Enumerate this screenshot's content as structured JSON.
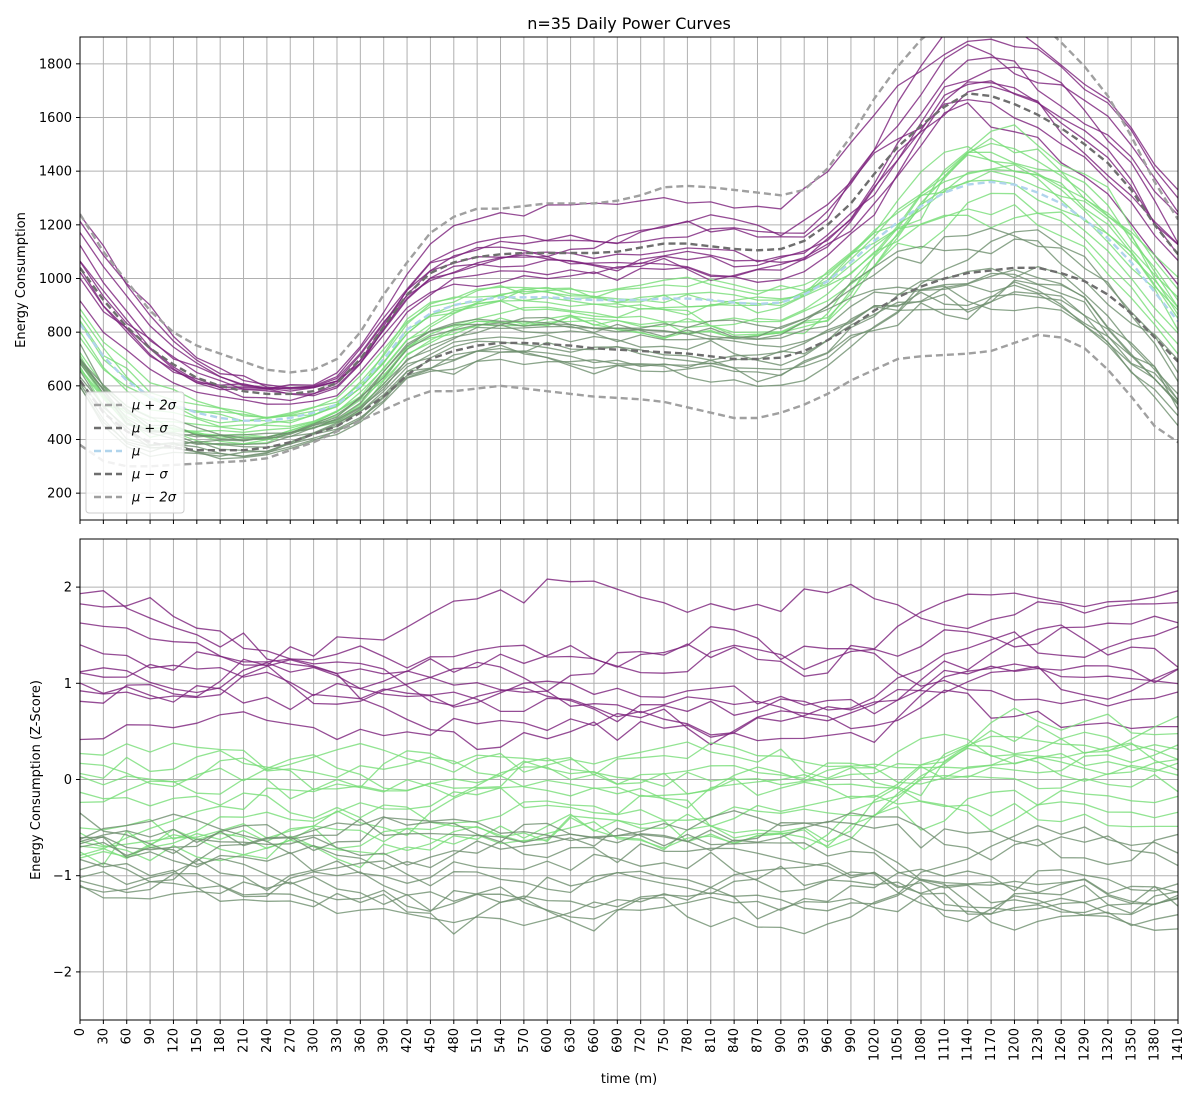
{
  "chart_data": [
    {
      "type": "line",
      "title": "n=35 Daily Power Curves",
      "xlabel": "",
      "ylabel": "Energy Consumption",
      "xlim": [
        0,
        1410
      ],
      "ylim": [
        100,
        1900
      ],
      "xticks": [
        0,
        30,
        60,
        90,
        120,
        150,
        180,
        210,
        240,
        270,
        300,
        330,
        360,
        390,
        420,
        450,
        480,
        510,
        540,
        570,
        600,
        630,
        660,
        690,
        720,
        750,
        780,
        810,
        840,
        870,
        900,
        930,
        960,
        990,
        1020,
        1050,
        1080,
        1110,
        1140,
        1170,
        1200,
        1230,
        1260,
        1290,
        1320,
        1350,
        1380,
        1410
      ],
      "yticks": [
        200,
        400,
        600,
        800,
        1000,
        1200,
        1400,
        1600,
        1800
      ],
      "grid": true,
      "legend_position": "lower-left",
      "legend_labels": [
        "μ + 2σ",
        "μ + σ",
        "μ",
        "μ − σ",
        "μ − 2σ"
      ],
      "colors": {
        "purple": "#7b1f7b",
        "green": "#77dd77",
        "gray_green": "#6e8f6e",
        "mean": "#b0d4ec",
        "band1": "#6e6e6e",
        "band2": "#a0a0a0"
      },
      "x_step_min": 30,
      "stats": {
        "mu_plus_2sigma": [
          1240,
          1100,
          990,
          880,
          800,
          750,
          720,
          690,
          660,
          650,
          660,
          700,
          800,
          940,
          1060,
          1170,
          1230,
          1260,
          1260,
          1270,
          1280,
          1280,
          1280,
          1290,
          1310,
          1340,
          1345,
          1340,
          1330,
          1320,
          1310,
          1330,
          1410,
          1530,
          1670,
          1790,
          1890,
          1960,
          2010,
          2030,
          2010,
          1960,
          1880,
          1790,
          1680,
          1530,
          1360,
          1220
        ],
        "mu_plus_sigma": [
          1040,
          920,
          820,
          740,
          680,
          630,
          600,
          580,
          570,
          570,
          580,
          610,
          700,
          820,
          940,
          1020,
          1060,
          1080,
          1090,
          1095,
          1095,
          1095,
          1095,
          1100,
          1115,
          1130,
          1130,
          1120,
          1110,
          1105,
          1110,
          1140,
          1200,
          1280,
          1390,
          1490,
          1570,
          1640,
          1690,
          1680,
          1650,
          1610,
          1560,
          1500,
          1430,
          1330,
          1200,
          1090
        ],
        "mu": [
          830,
          710,
          620,
          560,
          530,
          500,
          480,
          470,
          470,
          480,
          500,
          530,
          600,
          700,
          810,
          870,
          900,
          920,
          930,
          930,
          930,
          925,
          920,
          920,
          920,
          925,
          925,
          920,
          910,
          905,
          910,
          940,
          990,
          1060,
          1140,
          1210,
          1270,
          1320,
          1350,
          1360,
          1350,
          1320,
          1280,
          1220,
          1150,
          1060,
          950,
          840
        ],
        "mu_minus_sigma": [
          620,
          500,
          430,
          390,
          370,
          360,
          360,
          360,
          370,
          390,
          420,
          450,
          500,
          560,
          640,
          700,
          730,
          750,
          760,
          760,
          755,
          750,
          740,
          735,
          730,
          725,
          720,
          710,
          700,
          700,
          705,
          730,
          770,
          820,
          880,
          930,
          970,
          1000,
          1020,
          1030,
          1040,
          1040,
          1020,
          990,
          940,
          870,
          780,
          690
        ],
        "mu_minus_2sigma": [
          380,
          320,
          300,
          300,
          305,
          310,
          315,
          320,
          330,
          360,
          390,
          430,
          470,
          510,
          550,
          580,
          580,
          590,
          600,
          590,
          580,
          570,
          560,
          555,
          550,
          540,
          520,
          500,
          480,
          480,
          500,
          530,
          570,
          620,
          660,
          700,
          710,
          715,
          720,
          730,
          760,
          790,
          780,
          740,
          660,
          560,
          450,
          390
        ]
      }
    },
    {
      "type": "line",
      "title": "",
      "xlabel": "time (m)",
      "ylabel": "Energy Consumption (Z-Score)",
      "xlim": [
        0,
        1410
      ],
      "ylim": [
        -2.5,
        2.5
      ],
      "xticks": [
        0,
        30,
        60,
        90,
        120,
        150,
        180,
        210,
        240,
        270,
        300,
        330,
        360,
        390,
        420,
        450,
        480,
        510,
        540,
        570,
        600,
        630,
        660,
        690,
        720,
        750,
        780,
        810,
        840,
        870,
        900,
        930,
        960,
        990,
        1020,
        1050,
        1080,
        1110,
        1140,
        1170,
        1200,
        1230,
        1260,
        1290,
        1320,
        1350,
        1380,
        1410
      ],
      "yticks": [
        -2,
        -1,
        0,
        1,
        2
      ],
      "yticklabels": [
        "−2",
        "−1",
        "0",
        "1",
        "2"
      ],
      "grid": true,
      "n_series": 35
    }
  ]
}
